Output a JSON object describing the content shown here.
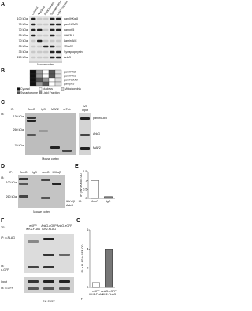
{
  "panels": {
    "A": {
      "label": "A",
      "columns": [
        "Cytosol",
        "Nucleus",
        "Mitochondria",
        "Synaptosome",
        "Lipid Fraction"
      ],
      "rows": [
        {
          "marker": "100 kDa",
          "protein": "pan-IKKα/β"
        },
        {
          "marker": "70 kDa",
          "protein": "pan-NEMO"
        },
        {
          "marker": "70 kDa",
          "protein": "pan-p65"
        },
        {
          "marker": "35 kDa",
          "protein": "GAPDH"
        },
        {
          "marker": "70 kDa",
          "protein": "Lamin A/C"
        },
        {
          "marker": "35 kDa",
          "protein": "VDAC2"
        },
        {
          "marker": "35 kDa",
          "protein": "Synaptophysin"
        },
        {
          "marker": "260 kDa",
          "protein": "AnkG"
        }
      ],
      "caption": "Mouse cortex"
    },
    "B": {
      "label": "B",
      "rows": [
        "pan-IKK2",
        "pan-IKKα",
        "pan-NEMO",
        "pan-p65"
      ],
      "legend": [
        "Cytosol",
        "Nucleus",
        "Mitochondria",
        "Synaptosome",
        "Lipid Fraction"
      ]
    },
    "C": {
      "label": "C",
      "ip": "IP:",
      "lanes": [
        "AnkG",
        "IgG",
        "MAP2",
        "α-Tub"
      ],
      "wb": "WB",
      "input": "Input",
      "ib": "IB:",
      "markers": [
        "130 kDa",
        "260 kDa",
        "70 kDa"
      ],
      "proteins": [
        "pan IKKα/β",
        "AnkG",
        "MAP2"
      ],
      "caption": "Mouse cortex"
    },
    "D": {
      "label": "D",
      "ip": "IP:",
      "lanes": [
        "AnkG",
        "IgG",
        "AnkG",
        "IKKα/β"
      ],
      "ib": "IB:",
      "markers": [
        "100 kDa",
        "260 kDa"
      ],
      "proteins": [
        "IKKα/β",
        "AnkG"
      ],
      "caption": "Mouse cortex"
    },
    "E": {
      "label": "E",
      "ylabel": "IP: pan IKKα/β OD",
      "ip": "IP:",
      "categories": [
        "AnkG",
        "IgG"
      ],
      "values": [
        1,
        0.1
      ],
      "ylim": [
        0,
        1.5
      ],
      "yticks": [
        0,
        0.5,
        1,
        1.5
      ]
    },
    "F": {
      "label": "F",
      "tf": "TF:",
      "lanes": [
        [
          "eGFP",
          "IKK2-FLAG"
        ],
        [
          "AnkG-eGFP",
          "IKK2-FLAG"
        ],
        [
          "AnkG-eGFP"
        ]
      ],
      "ip": "IP: α-FLAG",
      "ib": "IB:",
      "ib_antibody": "α-GFP",
      "input": "Input",
      "input_ib": "IB: α-GFP",
      "caption": "SH-SY5Y"
    },
    "G": {
      "label": "G",
      "ylabel": "IP: α-FLAG/α-GFP OD",
      "tf": "TF:",
      "categories": [
        [
          "eGFP",
          "IKK2-FLAG"
        ],
        [
          "AnkG-eGFP",
          "IKK2-FLAG"
        ]
      ],
      "values": [
        0.5,
        4
      ],
      "ylim": [
        0,
        6
      ],
      "yticks": [
        0,
        2,
        4,
        6
      ]
    }
  }
}
